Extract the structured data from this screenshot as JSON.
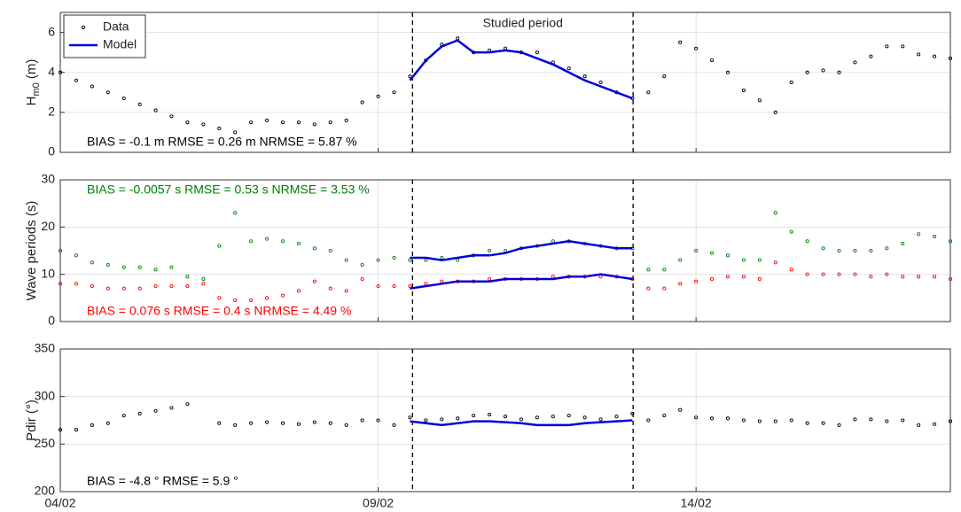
{
  "chart_data": [
    {
      "type": "scatter",
      "ylabel": {
        "main": "H",
        "sub": "m0",
        "unit": " (m)"
      },
      "xlim": [
        0,
        14
      ],
      "ylim": [
        0,
        7
      ],
      "yticks": [
        0,
        2,
        4,
        6
      ],
      "grid": true,
      "legend": "top-left",
      "studied_period": {
        "label": "Studied period",
        "start": 5.54,
        "end": 9.01
      },
      "annotations": [
        {
          "text": "BIAS = -0.1 m  RMSE = 0.26 m  NRMSE = 5.87 %",
          "color": "#000000",
          "position": "bottom"
        }
      ],
      "series": [
        {
          "name": "Data",
          "style": "markers",
          "color": "#000000",
          "x": [
            0,
            0.25,
            0.5,
            0.75,
            1,
            1.25,
            1.5,
            1.75,
            2,
            2.25,
            2.5,
            2.75,
            3,
            3.25,
            3.5,
            3.75,
            4,
            4.25,
            4.5,
            4.75,
            5,
            5.25,
            5.5,
            5.75,
            6,
            6.25,
            6.5,
            6.75,
            7,
            7.25,
            7.5,
            7.75,
            8,
            8.25,
            8.5,
            8.75,
            9,
            9.25,
            9.5,
            9.75,
            10,
            10.25,
            10.5,
            10.75,
            11,
            11.25,
            11.5,
            11.75,
            12,
            12.25,
            12.5,
            12.75,
            13,
            13.25,
            13.5,
            13.75,
            14
          ],
          "values": [
            4.0,
            3.6,
            3.3,
            3.0,
            2.7,
            2.4,
            2.1,
            1.8,
            1.5,
            1.4,
            1.2,
            1.0,
            1.5,
            1.6,
            1.5,
            1.5,
            1.4,
            1.5,
            1.6,
            2.5,
            2.8,
            3.0,
            3.8,
            4.6,
            5.4,
            5.7,
            5.0,
            5.1,
            5.2,
            5.0,
            5.0,
            4.5,
            4.2,
            3.8,
            3.5,
            3.0,
            2.7,
            3.0,
            3.8,
            5.5,
            5.2,
            4.6,
            4.0,
            3.1,
            2.6,
            2.0,
            3.5,
            4.0,
            4.1,
            4.0,
            4.5,
            4.8,
            5.3,
            5.3,
            4.9,
            4.8,
            4.7
          ]
        },
        {
          "name": "Model",
          "style": "line",
          "color": "#0000dd",
          "x": [
            5.5,
            5.75,
            6,
            6.25,
            6.5,
            6.75,
            7,
            7.25,
            7.5,
            7.75,
            8,
            8.25,
            8.5,
            8.75,
            9
          ],
          "values": [
            3.6,
            4.6,
            5.3,
            5.6,
            5.0,
            5.0,
            5.1,
            5.0,
            4.7,
            4.4,
            4.0,
            3.6,
            3.3,
            3.0,
            2.7
          ]
        }
      ]
    },
    {
      "type": "scatter",
      "ylabel": "Wave periods (s)",
      "xlim": [
        0,
        14
      ],
      "ylim": [
        0,
        30
      ],
      "yticks": [
        0,
        10,
        20,
        30
      ],
      "grid": true,
      "annotations": [
        {
          "text": "BIAS = -0.0057 s  RMSE = 0.53 s  NRMSE = 3.53 %",
          "color": "#008000",
          "position": "top"
        },
        {
          "text": "BIAS = 0.076 s  RMSE = 0.4 s  NRMSE = 4.49 %",
          "color": "#ff0000",
          "position": "bottom"
        }
      ],
      "series": [
        {
          "style": "markers",
          "color": "#008000",
          "x": [
            0,
            0.25,
            0.5,
            0.75,
            1,
            1.25,
            1.5,
            1.75,
            2,
            2.25,
            2.5,
            2.75,
            3,
            3.25,
            3.5,
            3.75,
            4,
            4.25,
            4.5,
            4.75,
            5,
            5.25,
            5.5,
            5.75,
            6,
            6.25,
            6.5,
            6.75,
            7,
            7.25,
            7.5,
            7.75,
            8,
            8.25,
            8.5,
            8.75,
            9,
            9.25,
            9.5,
            9.75,
            10,
            10.25,
            10.5,
            10.75,
            11,
            11.25,
            11.5,
            11.75,
            12,
            12.25,
            12.5,
            12.75,
            13,
            13.25,
            13.5,
            13.75,
            14
          ],
          "values": [
            15,
            14,
            12.5,
            12,
            11.5,
            11.5,
            11,
            11.5,
            9.5,
            9,
            16,
            23,
            17,
            17.5,
            17,
            16.5,
            15.5,
            15,
            13,
            12,
            13,
            13.5,
            13,
            13,
            13.5,
            13,
            14,
            15,
            15,
            15.5,
            16,
            17,
            17,
            16.5,
            16,
            15.5,
            15.5,
            11,
            11,
            13,
            15,
            14.5,
            14,
            13,
            13,
            23,
            19,
            17,
            15.5,
            15,
            15,
            15,
            15.5,
            16.5,
            18.5,
            18,
            17
          ]
        },
        {
          "style": "markers",
          "color": "#ff0000",
          "x": [
            0,
            0.25,
            0.5,
            0.75,
            1,
            1.25,
            1.5,
            1.75,
            2,
            2.25,
            2.5,
            2.75,
            3,
            3.25,
            3.5,
            3.75,
            4,
            4.25,
            4.5,
            4.75,
            5,
            5.25,
            5.5,
            5.75,
            6,
            6.25,
            6.5,
            6.75,
            7,
            7.25,
            7.5,
            7.75,
            8,
            8.25,
            8.5,
            8.75,
            9,
            9.25,
            9.5,
            9.75,
            10,
            10.25,
            10.5,
            10.75,
            11,
            11.25,
            11.5,
            11.75,
            12,
            12.25,
            12.5,
            12.75,
            13,
            13.25,
            13.5,
            13.75,
            14
          ],
          "values": [
            8,
            8,
            7.5,
            7,
            7,
            7,
            7.5,
            7.5,
            7.5,
            8,
            5,
            4.5,
            4.5,
            5,
            5.5,
            6.5,
            8.5,
            7,
            6.5,
            9,
            7.5,
            7.5,
            7.5,
            8,
            8.5,
            8.5,
            8.5,
            9,
            9,
            9,
            9,
            9.5,
            9.5,
            9.5,
            9.5,
            9.5,
            9,
            7,
            7,
            8,
            8.5,
            9,
            9.5,
            9.5,
            9,
            12.5,
            11,
            10,
            10,
            10,
            10,
            9.5,
            10,
            9.5,
            9.5,
            9.5,
            9
          ]
        },
        {
          "style": "line",
          "color": "#0000dd",
          "x": [
            5.5,
            5.75,
            6,
            6.25,
            6.5,
            6.75,
            7,
            7.25,
            7.5,
            7.75,
            8,
            8.25,
            8.5,
            8.75,
            9
          ],
          "values": [
            13.5,
            13.5,
            13,
            13.5,
            14,
            14,
            14.5,
            15.5,
            16,
            16.5,
            17,
            16.5,
            16,
            15.5,
            15.5
          ]
        },
        {
          "style": "line",
          "color": "#0000dd",
          "x": [
            5.5,
            5.75,
            6,
            6.25,
            6.5,
            6.75,
            7,
            7.25,
            7.5,
            7.75,
            8,
            8.25,
            8.5,
            8.75,
            9
          ],
          "values": [
            7,
            7.5,
            8,
            8.5,
            8.5,
            8.5,
            9,
            9,
            9,
            9,
            9.5,
            9.5,
            10,
            9.5,
            9
          ]
        }
      ]
    },
    {
      "type": "scatter",
      "ylabel": "Pdir (°)",
      "xlim": [
        0,
        14
      ],
      "xticks": [
        {
          "value": 0,
          "label": "04/02"
        },
        {
          "value": 5,
          "label": "09/02"
        },
        {
          "value": 10,
          "label": "14/02"
        }
      ],
      "ylim": [
        200,
        350
      ],
      "yticks": [
        200,
        250,
        300,
        350
      ],
      "grid": true,
      "annotations": [
        {
          "text": "BIAS = -4.8 °  RMSE = 5.9 °",
          "color": "#000000",
          "position": "bottom"
        }
      ],
      "series": [
        {
          "style": "markers",
          "color": "#000000",
          "x": [
            0,
            0.25,
            0.5,
            0.75,
            1,
            1.25,
            1.5,
            1.75,
            2,
            2.25,
            2.5,
            2.75,
            3,
            3.25,
            3.5,
            3.75,
            4,
            4.25,
            4.5,
            4.75,
            5,
            5.25,
            5.5,
            5.75,
            6,
            6.25,
            6.5,
            6.75,
            7,
            7.25,
            7.5,
            7.75,
            8,
            8.25,
            8.5,
            8.75,
            9,
            9.25,
            9.5,
            9.75,
            10,
            10.25,
            10.5,
            10.75,
            11,
            11.25,
            11.5,
            11.75,
            12,
            12.25,
            12.5,
            12.75,
            13,
            13.25,
            13.5,
            13.75,
            14
          ],
          "values": [
            265,
            265,
            270,
            272,
            280,
            282,
            285,
            288,
            292,
            null,
            272,
            270,
            272,
            273,
            272,
            271,
            273,
            272,
            270,
            275,
            275,
            270,
            278,
            275,
            276,
            277,
            280,
            281,
            279,
            276,
            278,
            279,
            280,
            278,
            276,
            279,
            282,
            275,
            280,
            286,
            278,
            277,
            277,
            275,
            274,
            274,
            275,
            272,
            272,
            270,
            276,
            276,
            274,
            275,
            270,
            271,
            274
          ]
        },
        {
          "style": "line",
          "color": "#0000dd",
          "x": [
            5.5,
            5.75,
            6,
            6.25,
            6.5,
            6.75,
            7,
            7.25,
            7.5,
            7.75,
            8,
            8.25,
            8.5,
            8.75,
            9
          ],
          "values": [
            274,
            272,
            270,
            272,
            274,
            274,
            273,
            272,
            270,
            270,
            270,
            272,
            273,
            274,
            275
          ]
        }
      ]
    }
  ]
}
